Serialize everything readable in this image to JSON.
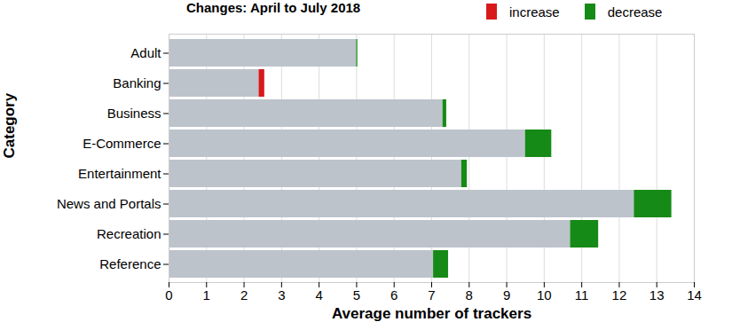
{
  "chart_data": {
    "type": "bar",
    "title": "Changes: April to July 2018",
    "orientation": "horizontal",
    "stacked": true,
    "grid": true,
    "legend": "top-right",
    "xlabel": "Average number of trackers",
    "ylabel": "Category",
    "categories": [
      "Adult",
      "Banking",
      "Business",
      "E-Commerce",
      "Entertainment",
      "News and Portals",
      "Recreation",
      "Reference"
    ],
    "values": [
      5.0,
      2.4,
      7.3,
      9.5,
      7.8,
      12.4,
      10.7,
      7.05
    ],
    "color": "#bcc3cb",
    "series": [
      {
        "name": "increase",
        "color": "#d7191c",
        "values": [
          0,
          0.15,
          0,
          0,
          0,
          0,
          0,
          0
        ]
      },
      {
        "name": "decrease",
        "color": "#168a16",
        "values": [
          0.03,
          0,
          0.1,
          0.7,
          0.15,
          1.0,
          0.75,
          0.4
        ]
      }
    ],
    "xlim": [
      0,
      14
    ],
    "xticks": [
      0,
      1,
      2,
      3,
      4,
      5,
      6,
      7,
      8,
      9,
      10,
      11,
      12,
      13,
      14
    ]
  }
}
